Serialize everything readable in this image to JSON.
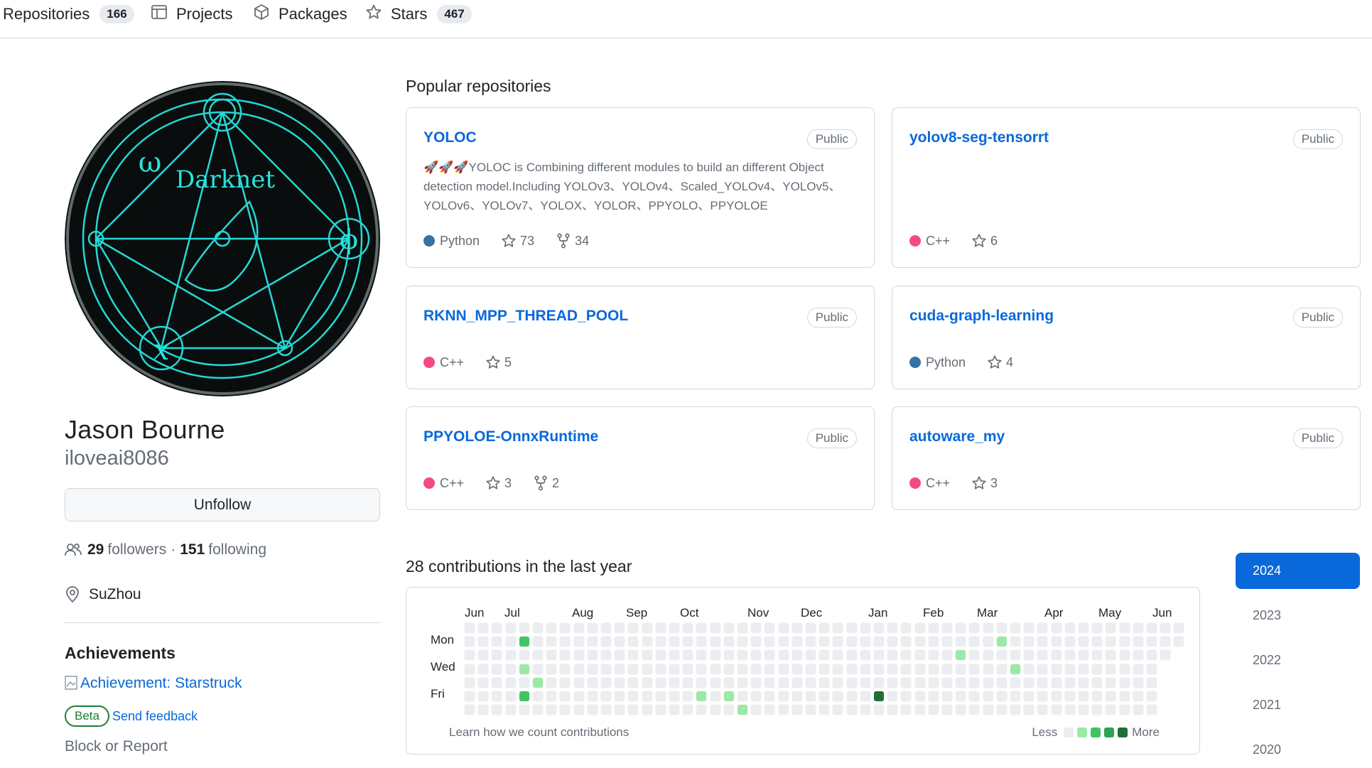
{
  "nav": {
    "repositories": {
      "label": "Repositories",
      "count": "166"
    },
    "projects": {
      "label": "Projects"
    },
    "packages": {
      "label": "Packages"
    },
    "stars": {
      "label": "Stars",
      "count": "467"
    }
  },
  "profile": {
    "avatar_text": "Darknet",
    "fullname": "Jason Bourne",
    "login": "iloveai8086",
    "unfollow_label": "Unfollow",
    "followers_count": "29",
    "followers_label": "followers",
    "separator": "·",
    "following_count": "151",
    "following_label": "following",
    "location": "SuZhou",
    "achievements_title": "Achievements",
    "achievement_alt": "Achievement: Starstruck",
    "beta_label": "Beta",
    "feedback_label": "Send feedback",
    "block_label": "Block or Report"
  },
  "popular": {
    "title": "Popular repositories",
    "repos": [
      {
        "name": "YOLOC",
        "visibility": "Public",
        "description": "🚀🚀🚀YOLOC is Combining different modules to build an different Object detection model.Including YOLOv3、YOLOv4、Scaled_YOLOv4、YOLOv5、YOLOv6、YOLOv7、YOLOX、YOLOR、PPYOLO、PPYOLOE",
        "language": "Python",
        "lang_color": "#3572A5",
        "stars": "73",
        "forks": "34"
      },
      {
        "name": "yolov8-seg-tensorrt",
        "visibility": "Public",
        "description": "",
        "language": "C++",
        "lang_color": "#f34b7d",
        "stars": "6",
        "forks": ""
      },
      {
        "name": "RKNN_MPP_THREAD_POOL",
        "visibility": "Public",
        "description": "",
        "language": "C++",
        "lang_color": "#f34b7d",
        "stars": "5",
        "forks": ""
      },
      {
        "name": "cuda-graph-learning",
        "visibility": "Public",
        "description": "",
        "language": "Python",
        "lang_color": "#3572A5",
        "stars": "4",
        "forks": ""
      },
      {
        "name": "PPYOLOE-OnnxRuntime",
        "visibility": "Public",
        "description": "",
        "language": "C++",
        "lang_color": "#f34b7d",
        "stars": "3",
        "forks": "2"
      },
      {
        "name": "autoware_my",
        "visibility": "Public",
        "description": "",
        "language": "C++",
        "lang_color": "#f34b7d",
        "stars": "3",
        "forks": ""
      }
    ]
  },
  "contributions": {
    "title": "28 contributions in the last year",
    "months": [
      "Jun",
      "Jul",
      "Aug",
      "Sep",
      "Oct",
      "Nov",
      "Dec",
      "Jan",
      "Feb",
      "Mar",
      "Apr",
      "May",
      "Jun"
    ],
    "day_labels": [
      "Mon",
      "Wed",
      "Fri"
    ],
    "learn_label": "Learn how we count contributions",
    "less_label": "Less",
    "more_label": "More",
    "level_colors": [
      "#ebedf0",
      "#9be9a8",
      "#40c463",
      "#30a14e",
      "#216e39"
    ],
    "active_cells": [
      {
        "week": 4,
        "day": 1,
        "level": 2
      },
      {
        "week": 4,
        "day": 3,
        "level": 1
      },
      {
        "week": 5,
        "day": 4,
        "level": 1
      },
      {
        "week": 4,
        "day": 5,
        "level": 2
      },
      {
        "week": 17,
        "day": 5,
        "level": 1
      },
      {
        "week": 19,
        "day": 5,
        "level": 1
      },
      {
        "week": 20,
        "day": 6,
        "level": 1
      },
      {
        "week": 30,
        "day": 5,
        "level": 4
      },
      {
        "week": 36,
        "day": 2,
        "level": 1
      },
      {
        "week": 39,
        "day": 1,
        "level": 1
      },
      {
        "week": 40,
        "day": 3,
        "level": 1
      }
    ]
  },
  "years": [
    "2024",
    "2023",
    "2022",
    "2021",
    "2020"
  ],
  "active_year": "2024"
}
